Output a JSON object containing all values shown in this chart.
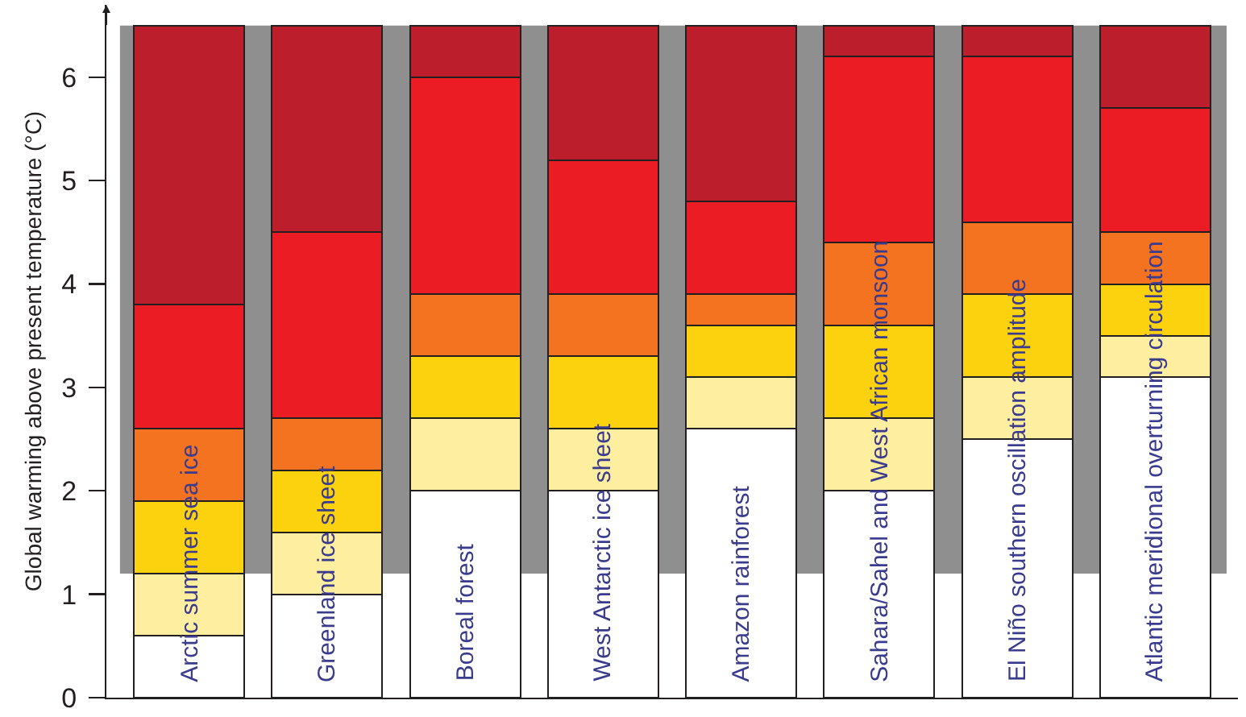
{
  "chart_data": {
    "type": "bar",
    "ylabel": "Global warming above present temperature (°C)",
    "categories": [
      "Arctic summer sea ice",
      "Greenland ice sheet",
      "Boreal forest",
      "West Antarctic ice sheet",
      "Amazon rainforest",
      "Sahara/Sahel and West African monsoon",
      "El Niño southern oscillation amplitude",
      "Atlantic meridional overturning circulation"
    ],
    "stacked": true,
    "series": [
      {
        "color": "#ffffff",
        "values": [
          0.6,
          1.0,
          2.0,
          2.0,
          2.6,
          2.0,
          2.5,
          3.1
        ]
      },
      {
        "color": "#fdeea0",
        "values": [
          0.6,
          0.6,
          0.7,
          0.6,
          0.5,
          0.7,
          0.6,
          0.4
        ]
      },
      {
        "color": "#fcd20f",
        "values": [
          0.7,
          0.6,
          0.6,
          0.7,
          0.5,
          0.9,
          0.8,
          0.5
        ]
      },
      {
        "color": "#f37321",
        "values": [
          0.7,
          0.5,
          0.6,
          0.6,
          0.3,
          0.8,
          0.7,
          0.5
        ]
      },
      {
        "color": "#ec1c24",
        "values": [
          1.2,
          1.8,
          2.1,
          1.3,
          0.9,
          1.8,
          1.6,
          1.2
        ]
      },
      {
        "color": "#bd1e2c",
        "values": [
          2.7,
          2.0,
          0.5,
          1.3,
          1.7,
          0.3,
          0.3,
          0.8
        ]
      }
    ],
    "ylim": [
      0,
      6.7
    ],
    "yticks": [
      0,
      1,
      2,
      3,
      4,
      5,
      6
    ],
    "bands": [
      {
        "axis": "y",
        "from": 1.2,
        "to": 6.5,
        "color": "#8f8f8f"
      }
    ],
    "grid": false
  }
}
